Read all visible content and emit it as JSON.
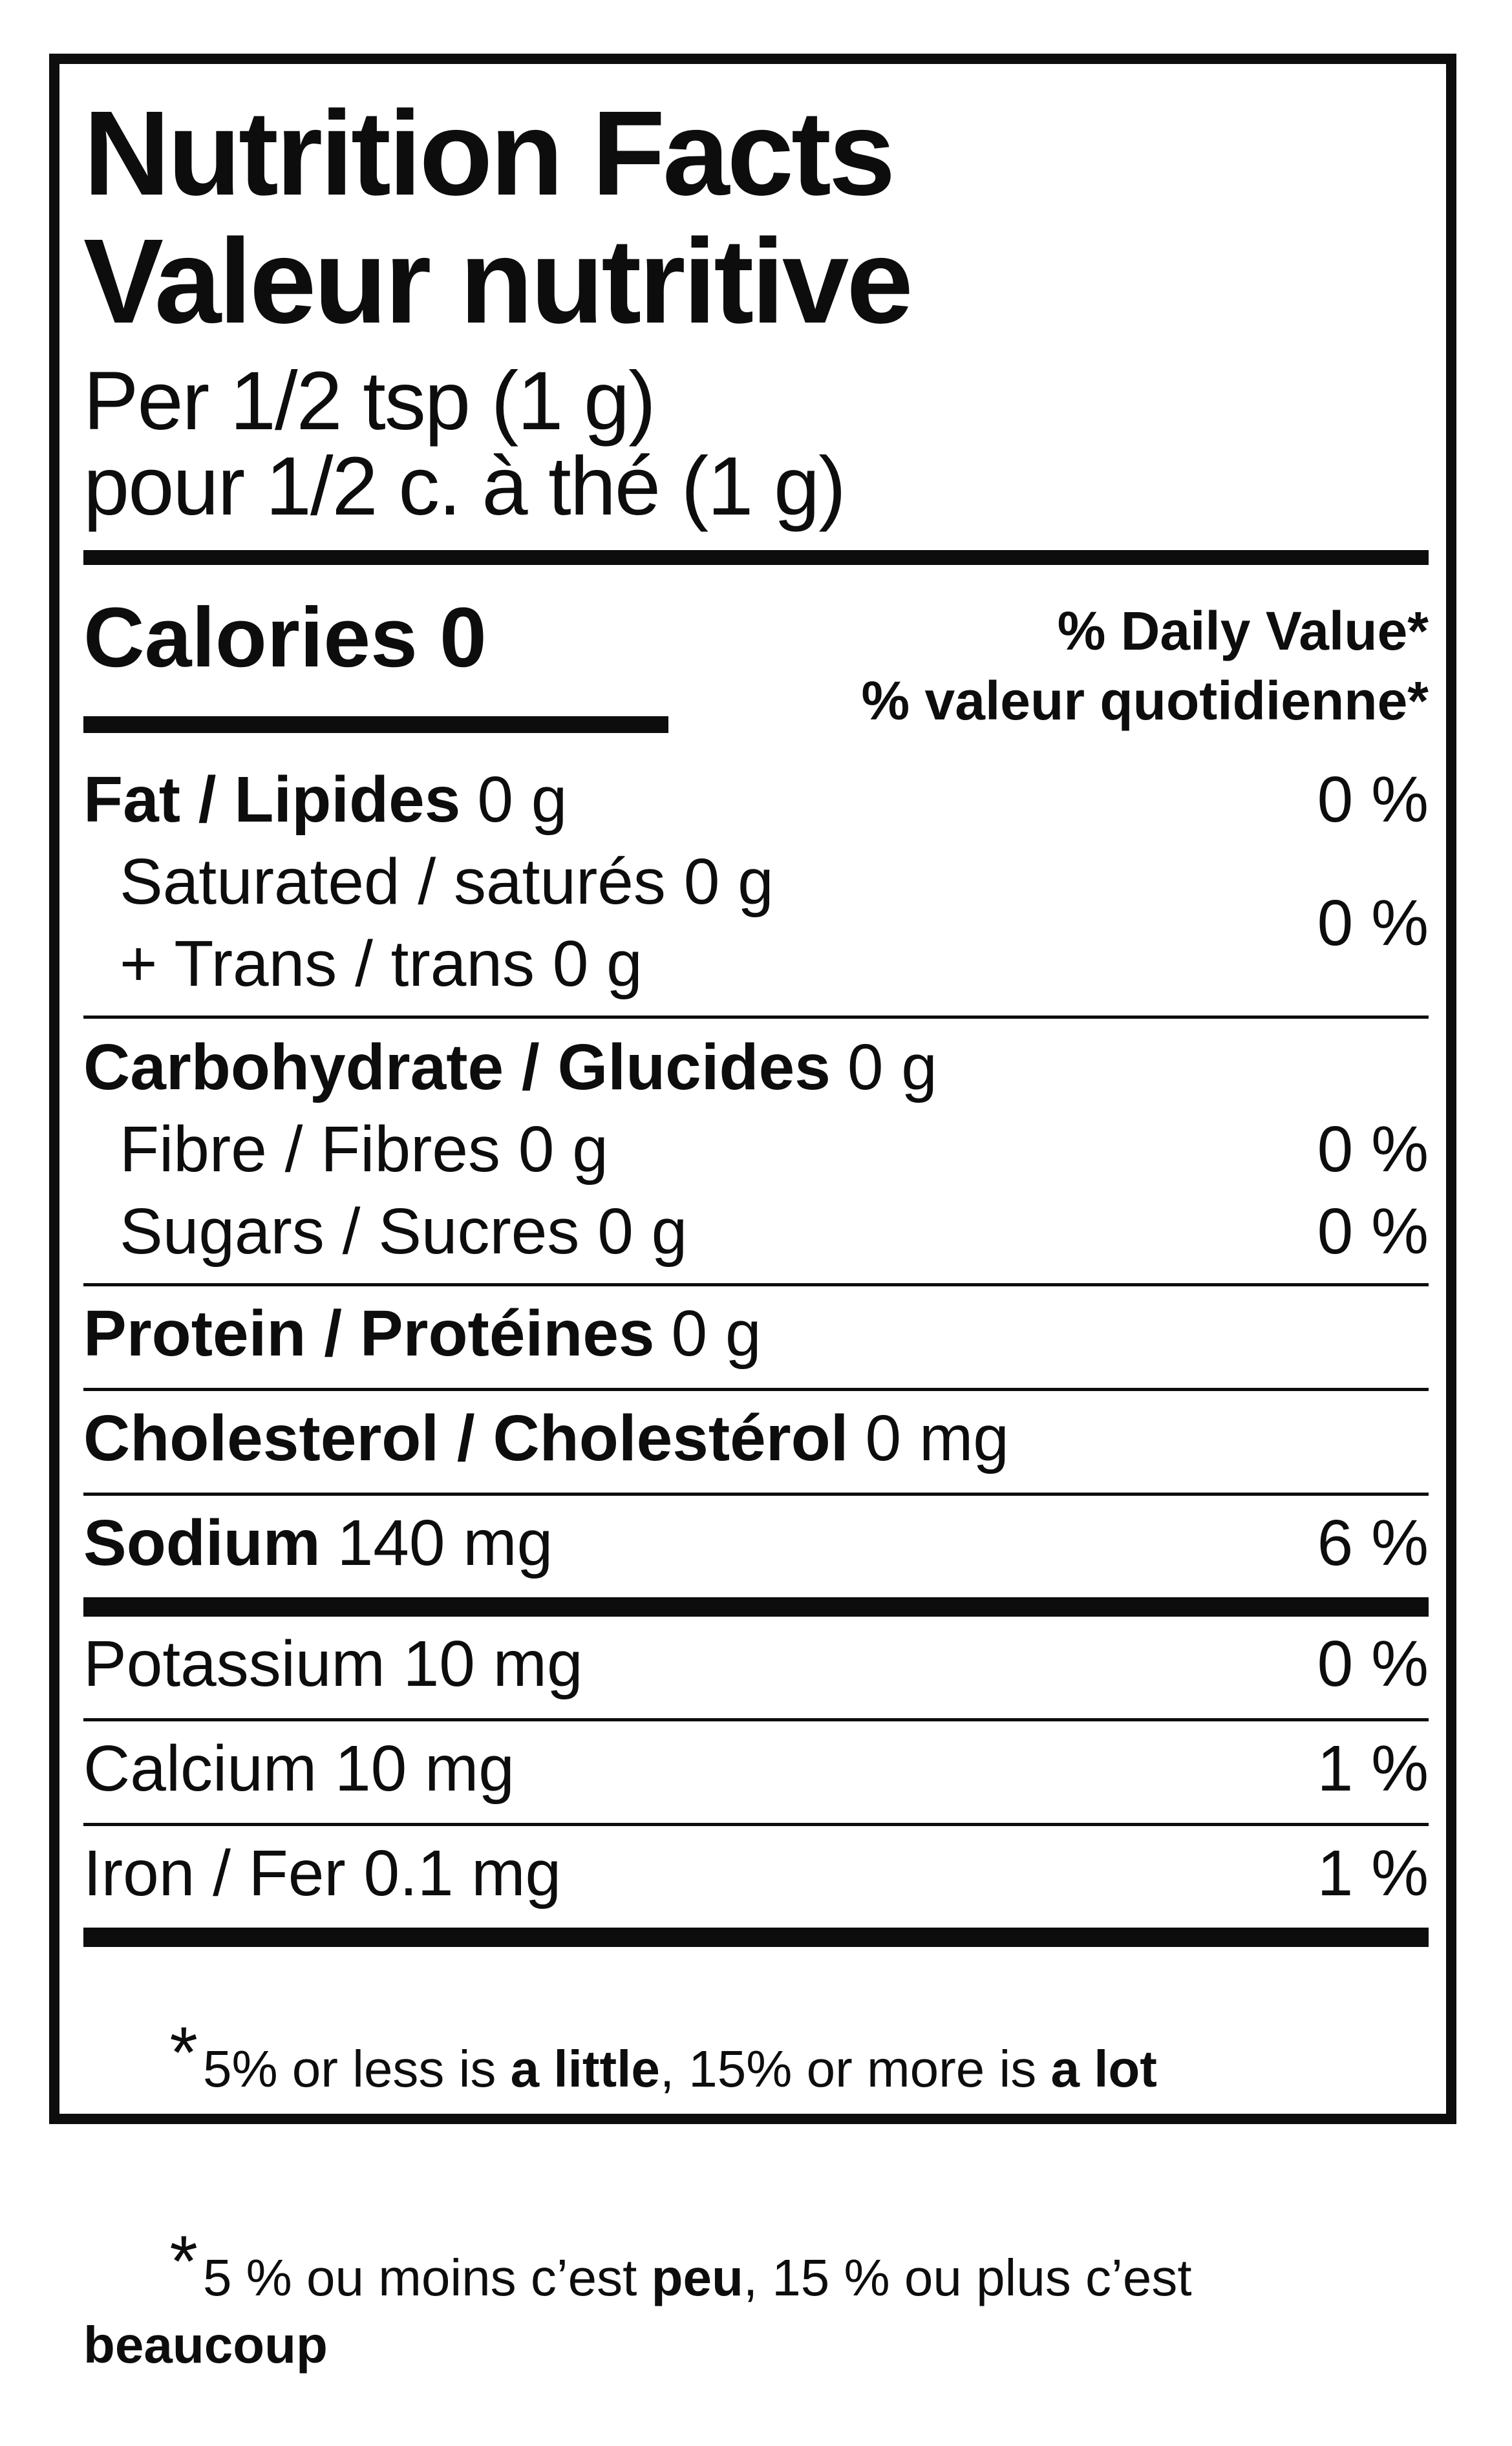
{
  "label": {
    "title_en": "Nutrition Facts",
    "title_fr": "Valeur nutritive",
    "serving_en": "Per 1/2 tsp (1 g)",
    "serving_fr": "pour 1/2 c. à thé (1 g)",
    "calories": {
      "label": "Calories",
      "value": "0"
    },
    "daily_value_header_en": "% Daily Value*",
    "daily_value_header_fr": "% valeur quotidienne*",
    "rows": {
      "fat": {
        "label": "Fat / Lipides",
        "amount": "0 g",
        "dv": "0 %"
      },
      "saturated_trans": {
        "line1": "Saturated / saturés 0 g",
        "line2": "+ Trans / trans 0 g",
        "dv": "0 %"
      },
      "carbohydrate": {
        "label": "Carbohydrate / Glucides",
        "amount": "0 g"
      },
      "fibre": {
        "label": "Fibre / Fibres 0 g",
        "dv": "0 %"
      },
      "sugars": {
        "label": "Sugars / Sucres 0 g",
        "dv": "0 %"
      },
      "protein": {
        "label": "Protein / Protéines",
        "amount": "0 g"
      },
      "cholesterol": {
        "label": "Cholesterol / Cholestérol",
        "amount": "0 mg"
      },
      "sodium": {
        "label": "Sodium",
        "amount": "140 mg",
        "dv": "6 %"
      },
      "potassium": {
        "label": "Potassium 10 mg",
        "dv": "0 %"
      },
      "calcium": {
        "label": "Calcium 10 mg",
        "dv": "1 %"
      },
      "iron": {
        "label": "Iron / Fer 0.1 mg",
        "dv": "1 %"
      }
    },
    "footnote_en": {
      "star": "*",
      "pre": "5% or less is ",
      "bold1": "a little",
      "mid": ", 15% or more is ",
      "bold2": "a lot"
    },
    "footnote_fr": {
      "star": "*",
      "pre": "5 % ou moins c’est ",
      "bold1": "peu",
      "mid": ", 15 % ou plus c’est ",
      "bold2": "beaucoup"
    },
    "colors": {
      "ink": "#0d0d0d",
      "background": "#ffffff"
    }
  }
}
